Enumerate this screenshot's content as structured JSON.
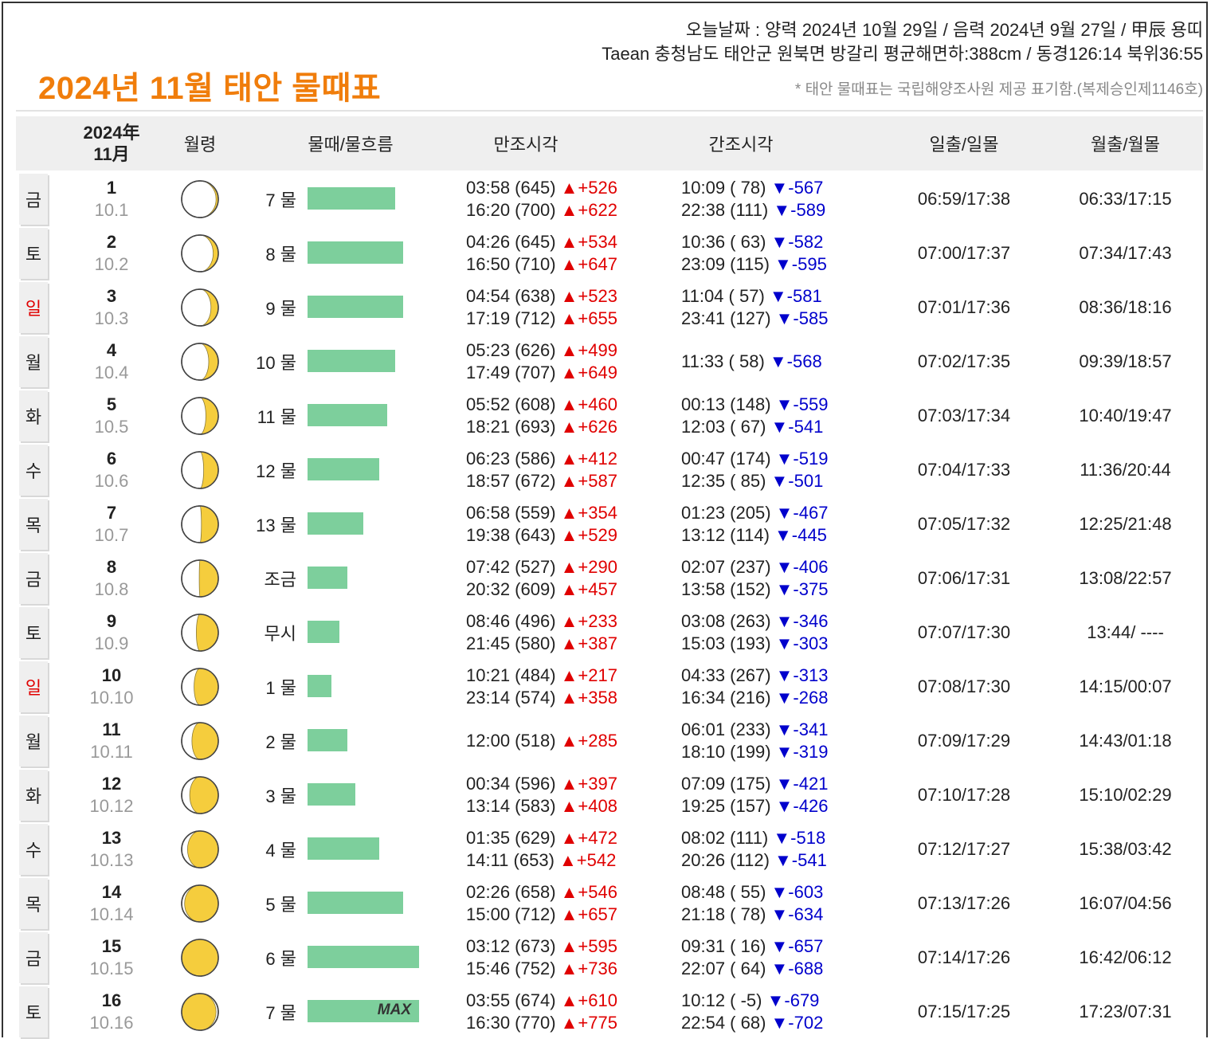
{
  "header": {
    "title": "2024년 11월 태안 물때표",
    "today": "오늘날짜 : 양력 2024년 10월 29일 / 음력 2024년 9월 27일 / 甲辰 용띠",
    "location": "Taean 충청남도 태안군 원북면 방갈리 평균해면하:388cm / 동경126:14 북위36:55",
    "note": "* 태안 물때표는 국립해양조사원 제공 표기함.(복제승인제1146호)"
  },
  "columns": {
    "year": "2024年",
    "month": "11月",
    "moon_phase": "월령",
    "tide": "물때/물흐름",
    "high": "만조시각",
    "low": "간조시각",
    "sun": "일출/일몰",
    "moon": "월출/월몰"
  },
  "colors": {
    "title": "#f07d0b",
    "bar": "#7dcf9c",
    "up": "#e00000",
    "down": "#0000cc",
    "sunday": "#e00000",
    "moon": "#f5cd3d"
  },
  "rows": [
    {
      "dow": "금",
      "day": "1",
      "lunar": "10.1",
      "phase": 0.03,
      "tide": "7 물",
      "flow": 0.55,
      "high": [
        [
          "03:58 (645) ",
          "▲+526"
        ],
        [
          "16:20 (700) ",
          "▲+622"
        ]
      ],
      "low": [
        [
          "10:09 ( 78) ",
          "▼-567"
        ],
        [
          "22:38 (111) ",
          "▼-589"
        ]
      ],
      "sun": "06:59/17:38",
      "moon": "06:33/17:15"
    },
    {
      "dow": "토",
      "day": "2",
      "lunar": "10.2",
      "phase": 0.07,
      "tide": "8 물",
      "flow": 0.6,
      "high": [
        [
          "04:26 (645) ",
          "▲+534"
        ],
        [
          "16:50 (710) ",
          "▲+647"
        ]
      ],
      "low": [
        [
          "10:36 ( 63) ",
          "▼-582"
        ],
        [
          "23:09 (115) ",
          "▼-595"
        ]
      ],
      "sun": "07:00/17:37",
      "moon": "07:34/17:43"
    },
    {
      "dow": "일",
      "day": "3",
      "lunar": "10.3",
      "phase": 0.1,
      "tide": "9 물",
      "flow": 0.6,
      "high": [
        [
          "04:54 (638) ",
          "▲+523"
        ],
        [
          "17:19 (712) ",
          "▲+655"
        ]
      ],
      "low": [
        [
          "11:04 ( 57) ",
          "▼-581"
        ],
        [
          "23:41 (127) ",
          "▼-585"
        ]
      ],
      "sun": "07:01/17:36",
      "moon": "08:36/18:16"
    },
    {
      "dow": "월",
      "day": "4",
      "lunar": "10.4",
      "phase": 0.13,
      "tide": "10 물",
      "flow": 0.55,
      "high": [
        [
          "05:23 (626) ",
          "▲+499"
        ],
        [
          "17:49 (707) ",
          "▲+649"
        ]
      ],
      "low": [
        [
          "11:33 ( 58) ",
          "▼-568"
        ]
      ],
      "sun": "07:02/17:35",
      "moon": "09:39/18:57"
    },
    {
      "dow": "화",
      "day": "5",
      "lunar": "10.5",
      "phase": 0.17,
      "tide": "11 물",
      "flow": 0.5,
      "high": [
        [
          "05:52 (608) ",
          "▲+460"
        ],
        [
          "18:21 (693) ",
          "▲+626"
        ]
      ],
      "low": [
        [
          "00:13 (148) ",
          "▼-559"
        ],
        [
          "12:03 ( 67) ",
          "▼-541"
        ]
      ],
      "sun": "07:03/17:34",
      "moon": "10:40/19:47"
    },
    {
      "dow": "수",
      "day": "6",
      "lunar": "10.6",
      "phase": 0.2,
      "tide": "12 물",
      "flow": 0.45,
      "high": [
        [
          "06:23 (586) ",
          "▲+412"
        ],
        [
          "18:57 (672) ",
          "▲+587"
        ]
      ],
      "low": [
        [
          "00:47 (174) ",
          "▼-519"
        ],
        [
          "12:35 ( 85) ",
          "▼-501"
        ]
      ],
      "sun": "07:04/17:33",
      "moon": "11:36/20:44"
    },
    {
      "dow": "목",
      "day": "7",
      "lunar": "10.7",
      "phase": 0.23,
      "tide": "13 물",
      "flow": 0.35,
      "high": [
        [
          "06:58 (559) ",
          "▲+354"
        ],
        [
          "19:38 (643) ",
          "▲+529"
        ]
      ],
      "low": [
        [
          "01:23 (205) ",
          "▼-467"
        ],
        [
          "13:12 (114) ",
          "▼-445"
        ]
      ],
      "sun": "07:05/17:32",
      "moon": "12:25/21:48"
    },
    {
      "dow": "금",
      "day": "8",
      "lunar": "10.8",
      "phase": 0.26,
      "tide": "조금",
      "flow": 0.25,
      "high": [
        [
          "07:42 (527) ",
          "▲+290"
        ],
        [
          "20:32 (609) ",
          "▲+457"
        ]
      ],
      "low": [
        [
          "02:07 (237) ",
          "▼-406"
        ],
        [
          "13:58 (152) ",
          "▼-375"
        ]
      ],
      "sun": "07:06/17:31",
      "moon": "13:08/22:57"
    },
    {
      "dow": "토",
      "day": "9",
      "lunar": "10.9",
      "phase": 0.3,
      "tide": "무시",
      "flow": 0.2,
      "high": [
        [
          "08:46 (496) ",
          "▲+233"
        ],
        [
          "21:45 (580) ",
          "▲+387"
        ]
      ],
      "low": [
        [
          "03:08 (263) ",
          "▼-346"
        ],
        [
          "15:03 (193) ",
          "▼-303"
        ]
      ],
      "sun": "07:07/17:30",
      "moon": "13:44/ ----"
    },
    {
      "dow": "일",
      "day": "10",
      "lunar": "10.10",
      "phase": 0.33,
      "tide": "1 물",
      "flow": 0.15,
      "high": [
        [
          "10:21 (484) ",
          "▲+217"
        ],
        [
          "23:14 (574) ",
          "▲+358"
        ]
      ],
      "low": [
        [
          "04:33 (267) ",
          "▼-313"
        ],
        [
          "16:34 (216) ",
          "▼-268"
        ]
      ],
      "sun": "07:08/17:30",
      "moon": "14:15/00:07"
    },
    {
      "dow": "월",
      "day": "11",
      "lunar": "10.11",
      "phase": 0.36,
      "tide": "2 물",
      "flow": 0.25,
      "high": [
        [
          "12:00 (518) ",
          "▲+285"
        ]
      ],
      "low": [
        [
          "06:01 (233) ",
          "▼-341"
        ],
        [
          "18:10 (199) ",
          "▼-319"
        ]
      ],
      "sun": "07:09/17:29",
      "moon": "14:43/01:18"
    },
    {
      "dow": "화",
      "day": "12",
      "lunar": "10.12",
      "phase": 0.39,
      "tide": "3 물",
      "flow": 0.3,
      "high": [
        [
          "00:34 (596) ",
          "▲+397"
        ],
        [
          "13:14 (583) ",
          "▲+408"
        ]
      ],
      "low": [
        [
          "07:09 (175) ",
          "▼-421"
        ],
        [
          "19:25 (157) ",
          "▼-426"
        ]
      ],
      "sun": "07:10/17:28",
      "moon": "15:10/02:29"
    },
    {
      "dow": "수",
      "day": "13",
      "lunar": "10.13",
      "phase": 0.42,
      "tide": "4 물",
      "flow": 0.45,
      "high": [
        [
          "01:35 (629) ",
          "▲+472"
        ],
        [
          "14:11 (653) ",
          "▲+542"
        ]
      ],
      "low": [
        [
          "08:02 (111) ",
          "▼-518"
        ],
        [
          "20:26 (112) ",
          "▼-541"
        ]
      ],
      "sun": "07:12/17:27",
      "moon": "15:38/03:42"
    },
    {
      "dow": "목",
      "day": "14",
      "lunar": "10.14",
      "phase": 0.46,
      "tide": "5 물",
      "flow": 0.6,
      "high": [
        [
          "02:26 (658) ",
          "▲+546"
        ],
        [
          "15:00 (712) ",
          "▲+657"
        ]
      ],
      "low": [
        [
          "08:48 ( 55) ",
          "▼-603"
        ],
        [
          "21:18 ( 78) ",
          "▼-634"
        ]
      ],
      "sun": "07:13/17:26",
      "moon": "16:07/04:56"
    },
    {
      "dow": "금",
      "day": "15",
      "lunar": "10.15",
      "phase": 0.5,
      "tide": "6 물",
      "flow": 0.7,
      "high": [
        [
          "03:12 (673) ",
          "▲+595"
        ],
        [
          "15:46 (752) ",
          "▲+736"
        ]
      ],
      "low": [
        [
          "09:31 ( 16) ",
          "▼-657"
        ],
        [
          "22:07 ( 64) ",
          "▼-688"
        ]
      ],
      "sun": "07:14/17:26",
      "moon": "16:42/06:12"
    },
    {
      "dow": "토",
      "day": "16",
      "lunar": "10.16",
      "phase": 0.53,
      "tide": "7 물",
      "flow": 0.7,
      "max": "MAX",
      "high": [
        [
          "03:55 (674) ",
          "▲+610"
        ],
        [
          "16:30 (770) ",
          "▲+775"
        ]
      ],
      "low": [
        [
          "10:12 ( -5) ",
          "▼-679"
        ],
        [
          "22:54 ( 68) ",
          "▼-702"
        ]
      ],
      "sun": "07:15/17:25",
      "moon": "17:23/07:31"
    }
  ]
}
